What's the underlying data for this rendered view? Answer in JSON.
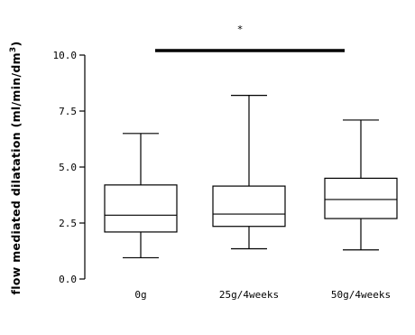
{
  "chart_data": {
    "type": "box",
    "ylabel_main": "flow mediated dilatation (ml/min/dm",
    "ylabel_sup": "3",
    "ylabel_end": ")",
    "ylim": [
      0,
      10
    ],
    "yticks": [
      "0.0",
      "2.5",
      "5.0",
      "7.5",
      "10.0"
    ],
    "categories": [
      "0g",
      "25g/4weeks",
      "50g/4weeks"
    ],
    "boxes": [
      {
        "category": "0g",
        "min": 0.95,
        "q1": 2.1,
        "median": 2.85,
        "q3": 4.2,
        "max": 6.5
      },
      {
        "category": "25g/4weeks",
        "min": 1.35,
        "q1": 2.35,
        "median": 2.9,
        "q3": 4.15,
        "max": 8.2
      },
      {
        "category": "50g/4weeks",
        "min": 1.3,
        "q1": 2.7,
        "median": 3.55,
        "q3": 4.5,
        "max": 7.1
      }
    ],
    "significance": {
      "from": "0g",
      "to": "50g/4weeks",
      "label": "*"
    },
    "grid": false
  }
}
